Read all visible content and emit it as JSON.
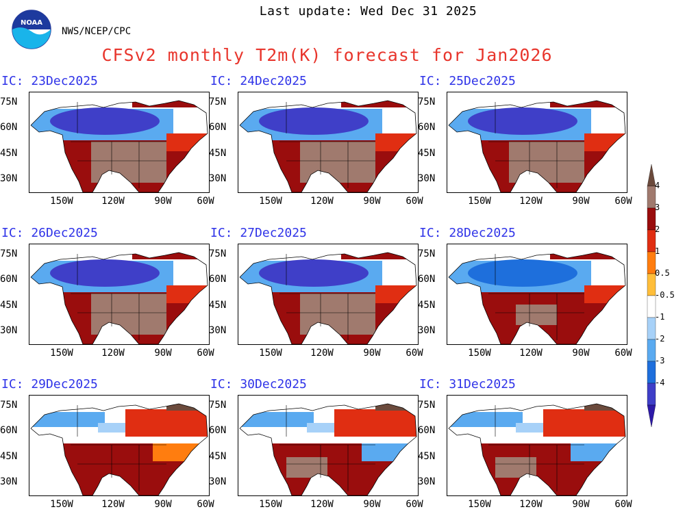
{
  "header": {
    "last_update": "Last update: Wed Dec 31 2025",
    "org": "NWS/NCEP/CPC",
    "title": "CFSv2 monthly T2m(K) forecast for Jan2026",
    "logo_text": "NOAA"
  },
  "map": {
    "lat_labels": [
      "75N",
      "60N",
      "45N",
      "30N"
    ],
    "lon_labels": [
      "150W",
      "120W",
      "90W",
      "60W"
    ]
  },
  "panels": [
    {
      "ic": "IC: 23Dec2025"
    },
    {
      "ic": "IC: 24Dec2025"
    },
    {
      "ic": "IC: 25Dec2025"
    },
    {
      "ic": "IC: 26Dec2025"
    },
    {
      "ic": "IC: 27Dec2025"
    },
    {
      "ic": "IC: 28Dec2025"
    },
    {
      "ic": "IC: 29Dec2025"
    },
    {
      "ic": "IC: 30Dec2025"
    },
    {
      "ic": "IC: 31Dec2025"
    }
  ],
  "colorbar": {
    "labels": [
      "4",
      "3",
      "2",
      "1",
      "0.5",
      "-0.5",
      "-1",
      "-2",
      "-3",
      "-4"
    ],
    "colors": [
      "#6b4a3c",
      "#a07a6e",
      "#9a0d0d",
      "#e02e12",
      "#ff7d0f",
      "#ffbe3a",
      "#ffffff",
      "#a7d1f8",
      "#5aaaf0",
      "#1e6fdc",
      "#3f3fc8",
      "#2d1aa8"
    ]
  }
}
